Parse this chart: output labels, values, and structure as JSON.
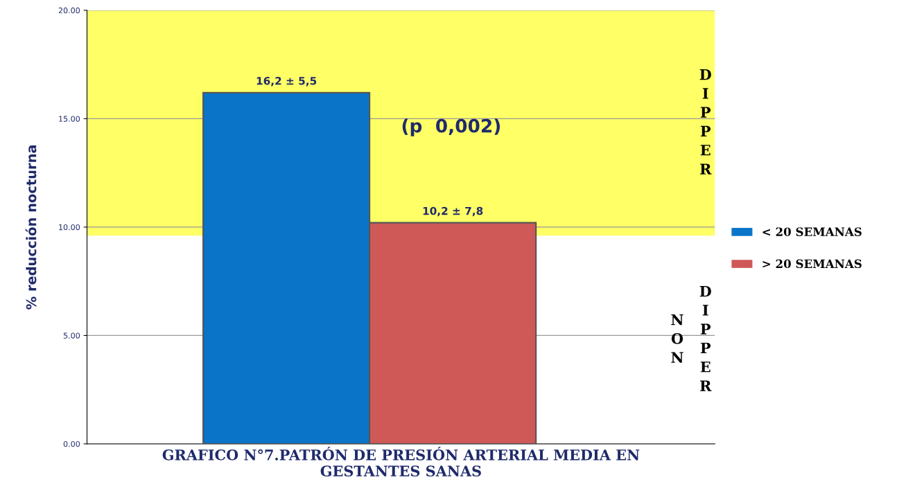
{
  "chart_data": {
    "type": "bar",
    "xlabel": "GRAFICO N°7.PATRÓN DE PRESIÓN ARTERIAL MEDIA EN\nGESTANTES SANAS",
    "ylabel": "% reducción nocturna",
    "categories": [
      null
    ],
    "series": [
      {
        "name": "< 20 SEMANAS",
        "color": "#0a74c8",
        "values": [
          16.2
        ],
        "value_labels": [
          "16,2 ± 5,5"
        ]
      },
      {
        "name": "> 20 SEMANAS",
        "color": "#cf5957",
        "values": [
          10.2
        ],
        "value_labels": [
          "10,2 ± 7,8"
        ]
      }
    ],
    "ylim": [
      0,
      20
    ],
    "yticks": [
      {
        "value": 0,
        "label": "0.00"
      },
      {
        "value": 5,
        "label": "5.00"
      },
      {
        "value": 10,
        "label": "10.00"
      },
      {
        "value": 15,
        "label": "15.00"
      },
      {
        "value": 20,
        "label": "20.00"
      }
    ],
    "bands": [
      {
        "axis": "y",
        "from": 9.6,
        "to": 20,
        "label": "DIPPER",
        "color": "#ffff66"
      },
      {
        "axis": "y",
        "from": 0,
        "to": 9.6,
        "label": "NON DIPPER",
        "color": "#ffffff"
      }
    ],
    "annotations": [
      "(p  0,002)"
    ],
    "grid": "y",
    "legend": "right"
  }
}
